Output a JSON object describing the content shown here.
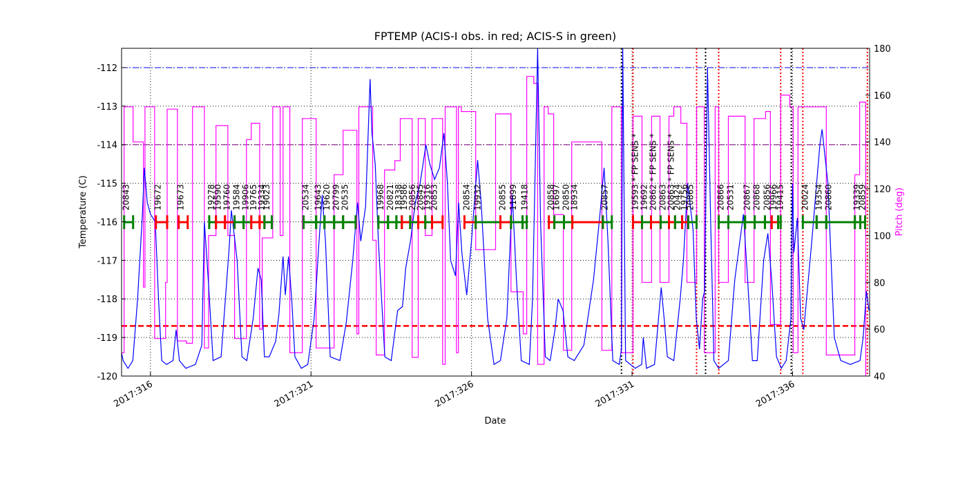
{
  "chart_data": {
    "type": "line",
    "title": "FPTEMP (ACIS-I obs. in red; ACIS-S in green)",
    "x_label": "Date",
    "y_label": "Temperature (C)",
    "y2_label": "Pitch (deg)",
    "y2_color": "#ff00ff",
    "xlim": [
      315.1,
      338.4
    ],
    "ylim": [
      -120,
      -111.5
    ],
    "y2lim": [
      40,
      180
    ],
    "xticks": [
      {
        "value": 316,
        "label": "2017:316"
      },
      {
        "value": 321,
        "label": "2017:321"
      },
      {
        "value": 326,
        "label": "2017:326"
      },
      {
        "value": 331,
        "label": "2017:331"
      },
      {
        "value": 336,
        "label": "2017:336"
      }
    ],
    "yticks": [
      -120,
      -119,
      -118,
      -117,
      -116,
      -115,
      -114,
      -113,
      -112
    ],
    "y2ticks": [
      40,
      60,
      80,
      100,
      120,
      140,
      160,
      180
    ],
    "grid": true,
    "series": [
      {
        "color": "#0000ff",
        "axis": "y",
        "x": [
          315.1,
          315.15,
          315.3,
          315.45,
          315.6,
          315.75,
          315.81,
          315.9,
          316.0,
          316.15,
          316.25,
          316.35,
          316.5,
          316.7,
          316.8,
          316.9,
          317.1,
          317.4,
          317.6,
          317.68,
          317.8,
          317.95,
          318.2,
          318.45,
          318.52,
          318.7,
          318.85,
          319.0,
          319.2,
          319.35,
          319.45,
          319.55,
          319.7,
          319.9,
          320.0,
          320.13,
          320.2,
          320.3,
          320.4,
          320.5,
          320.7,
          320.9,
          321.1,
          321.25,
          321.35,
          321.45,
          321.6,
          321.9,
          322.1,
          322.3,
          322.45,
          322.55,
          322.7,
          322.84,
          322.9,
          323.0,
          323.1,
          323.3,
          323.5,
          323.7,
          323.85,
          323.95,
          324.1,
          324.25,
          324.4,
          324.58,
          324.7,
          324.85,
          325.0,
          325.14,
          325.25,
          325.35,
          325.5,
          325.6,
          325.7,
          325.85,
          326.0,
          326.19,
          326.3,
          326.5,
          326.7,
          326.9,
          327.1,
          327.27,
          327.4,
          327.55,
          327.8,
          327.9,
          328.06,
          328.15,
          328.3,
          328.45,
          328.6,
          328.7,
          328.85,
          329.0,
          329.2,
          329.5,
          329.8,
          330.0,
          330.13,
          330.25,
          330.4,
          330.6,
          330.67,
          330.71,
          330.8,
          331.1,
          331.3,
          331.35,
          331.45,
          331.7,
          331.91,
          332.0,
          332.1,
          332.3,
          332.5,
          332.6,
          332.73,
          332.9,
          333.0,
          333.1,
          333.2,
          333.26,
          333.35,
          333.45,
          333.55,
          333.7,
          334.0,
          334.2,
          334.47,
          334.6,
          334.75,
          334.9,
          335.1,
          335.23,
          335.35,
          335.5,
          335.65,
          335.8,
          335.95,
          336.0,
          336.04,
          336.15,
          336.25,
          336.35,
          336.6,
          336.85,
          336.92,
          337.1,
          337.3,
          337.5,
          337.8,
          338.1,
          338.2,
          338.3,
          338.38
        ],
        "values": [
          -119.4,
          -119.6,
          -119.8,
          -119.6,
          -118,
          -115.8,
          -114.6,
          -115.5,
          -115.8,
          -116,
          -118,
          -119.6,
          -119.7,
          -119.6,
          -118.8,
          -119.6,
          -119.8,
          -119.7,
          -119.2,
          -116,
          -117.5,
          -119.6,
          -119.5,
          -116.7,
          -115.7,
          -117,
          -119.5,
          -119.6,
          -118.5,
          -117.2,
          -117.5,
          -119.5,
          -119.5,
          -119.1,
          -118.4,
          -116.9,
          -117.9,
          -116.9,
          -118,
          -119.5,
          -119.8,
          -119.7,
          -118.5,
          -116.5,
          -115.3,
          -116.5,
          -119.5,
          -119.6,
          -118.6,
          -117,
          -115.5,
          -116.5,
          -115.6,
          -112.3,
          -113.7,
          -114.5,
          -116.5,
          -119.5,
          -119.6,
          -118.3,
          -118.2,
          -117.2,
          -116.5,
          -115.5,
          -115,
          -114,
          -114.5,
          -114.9,
          -114.6,
          -113.7,
          -115,
          -117,
          -117.4,
          -115.5,
          -116.8,
          -117.9,
          -116.5,
          -114.4,
          -115.5,
          -118.5,
          -119.7,
          -119.6,
          -118.5,
          -115.3,
          -117.5,
          -119.6,
          -119.7,
          -118,
          -111.5,
          -116,
          -119.5,
          -119.6,
          -118.8,
          -118,
          -118.3,
          -119.5,
          -119.6,
          -119.2,
          -117.5,
          -115.8,
          -114.6,
          -116.5,
          -119.6,
          -119.7,
          -119.3,
          -111.5,
          -119.6,
          -119.8,
          -119.7,
          -119,
          -119.8,
          -119.7,
          -117.7,
          -118.5,
          -119.5,
          -119.6,
          -118,
          -117,
          -115,
          -116.2,
          -118.5,
          -119.3,
          -118,
          -117.8,
          -112,
          -116,
          -119.6,
          -119.8,
          -119.6,
          -117.5,
          -115.8,
          -117.5,
          -119.6,
          -119.6,
          -117,
          -116.3,
          -117.5,
          -119.5,
          -119.8,
          -119.6,
          -118.5,
          -115,
          -116.8,
          -115.9,
          -118.5,
          -118.8,
          -116.5,
          -114,
          -113.6,
          -115,
          -119,
          -119.6,
          -119.7,
          -119.6,
          -119,
          -117.8,
          -118.3
        ]
      },
      {
        "color": "#ff00ff",
        "axis": "y2",
        "x": [
          315.1,
          315.18,
          315.18,
          315.46,
          315.46,
          315.78,
          315.78,
          315.83,
          315.83,
          316.13,
          316.13,
          316.47,
          316.47,
          316.52,
          316.52,
          316.84,
          316.84,
          317.12,
          317.12,
          317.31,
          317.31,
          317.68,
          317.68,
          317.81,
          317.81,
          318.04,
          318.04,
          318.41,
          318.41,
          318.62,
          318.62,
          318.99,
          318.99,
          319.14,
          319.14,
          319.4,
          319.4,
          319.48,
          319.48,
          319.81,
          319.81,
          320.04,
          320.04,
          320.13,
          320.13,
          320.34,
          320.34,
          320.73,
          320.73,
          321.16,
          321.16,
          321.72,
          321.72,
          322.0,
          322.0,
          322.43,
          322.43,
          322.49,
          322.49,
          322.92,
          322.92,
          323.03,
          323.03,
          323.29,
          323.29,
          323.61,
          323.61,
          323.78,
          323.78,
          324.15,
          324.15,
          324.34,
          324.34,
          324.56,
          324.56,
          324.77,
          324.77,
          325.1,
          325.1,
          325.18,
          325.18,
          325.53,
          325.53,
          325.59,
          325.59,
          325.68,
          325.68,
          326.13,
          326.13,
          326.75,
          326.75,
          327.23,
          327.23,
          327.61,
          327.61,
          327.72,
          327.72,
          327.94,
          327.94,
          328.06,
          328.06,
          328.26,
          328.26,
          328.39,
          328.39,
          328.56,
          328.56,
          328.86,
          328.86,
          329.12,
          329.12,
          330.06,
          330.06,
          330.37,
          330.37,
          330.67,
          330.67,
          331.03,
          331.03,
          331.31,
          331.31,
          331.61,
          331.61,
          331.87,
          331.87,
          332.15,
          332.15,
          332.3,
          332.3,
          332.52,
          332.52,
          332.71,
          332.71,
          333.01,
          333.01,
          333.25,
          333.25,
          333.59,
          333.59,
          333.7,
          333.7,
          334.0,
          334.0,
          334.52,
          334.52,
          334.8,
          334.8,
          335.16,
          335.16,
          335.31,
          335.31,
          335.63,
          335.63,
          335.91,
          335.91,
          336.02,
          336.02,
          336.17,
          336.17,
          337.05,
          337.05,
          337.94,
          337.94,
          338.09,
          338.09,
          338.28,
          338.28
        ],
        "values": [
          50,
          50,
          155,
          155,
          140,
          140,
          78,
          78,
          155,
          155,
          56,
          56,
          80,
          80,
          154,
          154,
          55,
          55,
          54,
          54,
          155,
          155,
          52,
          52,
          100,
          100,
          147,
          147,
          100,
          100,
          56,
          56,
          141,
          141,
          148,
          148,
          60,
          60,
          99,
          99,
          155,
          155,
          100,
          100,
          155,
          155,
          50,
          50,
          150,
          150,
          52,
          52,
          126,
          126,
          145,
          145,
          58,
          58,
          155,
          155,
          98,
          98,
          49,
          49,
          128,
          128,
          132,
          132,
          150,
          150,
          48,
          48,
          150,
          150,
          100,
          100,
          150,
          150,
          45,
          45,
          155,
          155,
          50,
          50,
          155,
          155,
          153,
          153,
          94,
          94,
          152,
          152,
          76,
          76,
          58,
          58,
          168,
          168,
          165,
          165,
          45,
          45,
          155,
          155,
          152,
          152,
          109,
          109,
          51,
          51,
          140,
          140,
          51,
          51,
          155,
          155,
          50,
          50,
          151,
          151,
          80,
          80,
          151,
          151,
          80,
          80,
          151,
          151,
          155,
          155,
          148,
          148,
          80,
          80,
          155,
          155,
          50,
          50,
          155,
          155,
          80,
          80,
          151,
          151,
          80,
          80,
          150,
          150,
          153,
          153,
          62,
          62,
          160,
          160,
          155,
          155,
          50,
          50,
          155,
          155,
          49,
          49,
          126,
          126,
          157,
          157,
          40
        ]
      }
    ],
    "hlines": [
      {
        "value": -112,
        "color": "#0000ff",
        "style": "dash-dot"
      },
      {
        "value": -114,
        "color": "#800080",
        "style": "dash-dot"
      },
      {
        "value": -118.7,
        "color": "#ff0000",
        "style": "dashed"
      }
    ],
    "vlines": [
      {
        "value": 330.67,
        "color": "#000000"
      },
      {
        "value": 333.29,
        "color": "#000000"
      },
      {
        "value": 335.96,
        "color": "#000000"
      },
      {
        "value": 331.03,
        "color": "#ff0000"
      },
      {
        "value": 333.01,
        "color": "#ff0000"
      },
      {
        "value": 333.7,
        "color": "#ff0000"
      },
      {
        "value": 335.63,
        "color": "#ff0000"
      },
      {
        "value": 336.32,
        "color": "#ff0000"
      },
      {
        "value": 338.33,
        "color": "#ff0000"
      }
    ],
    "observations": [
      {
        "obsid": "20843",
        "color": "#008000",
        "start": 315.18,
        "stop": 315.46
      },
      {
        "obsid": "19672",
        "color": "#ff0000",
        "start": 316.17,
        "stop": 316.52
      },
      {
        "obsid": "19673",
        "color": "#ff0000",
        "start": 316.88,
        "stop": 317.16
      },
      {
        "obsid": "19278",
        "color": "#008000",
        "start": 317.83,
        "stop": 318.04
      },
      {
        "obsid": "19590",
        "color": "#ff0000",
        "start": 318.04,
        "stop": 318.32
      },
      {
        "obsid": "19760",
        "color": "#ff0000",
        "start": 318.32,
        "stop": 318.62
      },
      {
        "obsid": "19584",
        "color": "#008000",
        "start": 318.62,
        "stop": 318.9
      },
      {
        "obsid": "19906",
        "color": "#008000",
        "start": 318.9,
        "stop": 319.14
      },
      {
        "obsid": "19765",
        "color": "#ff0000",
        "start": 319.14,
        "stop": 319.4
      },
      {
        "obsid": "19334",
        "color": "#ff0000",
        "start": 319.4,
        "stop": 319.55
      },
      {
        "obsid": "19023",
        "color": "#008000",
        "start": 319.55,
        "stop": 319.78
      },
      {
        "obsid": "20534",
        "color": "#008000",
        "start": 320.77,
        "stop": 321.16
      },
      {
        "obsid": "19643",
        "color": "#008000",
        "start": 321.16,
        "stop": 321.42
      },
      {
        "obsid": "19620",
        "color": "#008000",
        "start": 321.42,
        "stop": 321.72
      },
      {
        "obsid": "20799",
        "color": "#008000",
        "start": 321.72,
        "stop": 322.0
      },
      {
        "obsid": "20535",
        "color": "#008000",
        "start": 322.0,
        "stop": 322.39
      },
      {
        "obsid": "19968",
        "color": "#008000",
        "start": 323.1,
        "stop": 323.4
      },
      {
        "obsid": "20821",
        "color": "#008000",
        "start": 323.4,
        "stop": 323.66
      },
      {
        "obsid": "18338",
        "color": "#008000",
        "start": 323.66,
        "stop": 323.83
      },
      {
        "obsid": "19586",
        "color": "#ff0000",
        "start": 323.83,
        "stop": 324.09
      },
      {
        "obsid": "20856",
        "color": "#008000",
        "start": 324.09,
        "stop": 324.34
      },
      {
        "obsid": "20845",
        "color": "#ff0000",
        "start": 324.34,
        "stop": 324.56
      },
      {
        "obsid": "19316",
        "color": "#008000",
        "start": 324.56,
        "stop": 324.77
      },
      {
        "obsid": "20853",
        "color": "#ff0000",
        "start": 324.77,
        "stop": 325.1
      },
      {
        "obsid": "20854",
        "color": "#ff0000",
        "start": 325.78,
        "stop": 326.13
      },
      {
        "obsid": "19932",
        "color": "#008000",
        "start": 326.13,
        "stop": 326.9
      },
      {
        "obsid": "20855",
        "color": "#ff0000",
        "start": 326.9,
        "stop": 327.23
      },
      {
        "obsid": "11899",
        "color": "#008000",
        "start": 327.23,
        "stop": 327.59
      },
      {
        "obsid": "19418",
        "color": "#008000",
        "start": 327.59,
        "stop": 327.72
      },
      {
        "obsid": "20858",
        "color": "#ff0000",
        "start": 328.41,
        "stop": 328.58
      },
      {
        "obsid": "16697",
        "color": "#008000",
        "start": 328.58,
        "stop": 328.88
      },
      {
        "obsid": "20850",
        "color": "#008000",
        "start": 328.88,
        "stop": 329.14
      },
      {
        "obsid": "18934",
        "color": "#ff0000",
        "start": 329.14,
        "stop": 330.09
      },
      {
        "obsid": "20857",
        "color": "#008000",
        "start": 330.09,
        "stop": 330.37
      },
      {
        "obsid": "19593 * FP SENS *",
        "color": "#ff0000",
        "start": 331.03,
        "stop": 331.31
      },
      {
        "obsid": "19692",
        "color": "#008000",
        "start": 331.31,
        "stop": 331.59
      },
      {
        "obsid": "20862 * FP SENS *",
        "color": "#ff0000",
        "start": 331.59,
        "stop": 331.89
      },
      {
        "obsid": "20863",
        "color": "#008000",
        "start": 331.89,
        "stop": 332.15
      },
      {
        "obsid": "20863 * FP SENS *",
        "color": "#ff0000",
        "start": 332.15,
        "stop": 332.34
      },
      {
        "obsid": "20424",
        "color": "#008000",
        "start": 332.34,
        "stop": 332.56
      },
      {
        "obsid": "19756",
        "color": "#ff0000",
        "start": 332.56,
        "stop": 332.75
      },
      {
        "obsid": "20865",
        "color": "#008000",
        "start": 332.75,
        "stop": 333.01
      },
      {
        "obsid": "20866",
        "color": "#008000",
        "start": 333.7,
        "stop": 334.0
      },
      {
        "obsid": "20531",
        "color": "#008000",
        "start": 334.0,
        "stop": 334.52
      },
      {
        "obsid": "20867",
        "color": "#008000",
        "start": 334.52,
        "stop": 334.82
      },
      {
        "obsid": "20868",
        "color": "#008000",
        "start": 334.82,
        "stop": 335.14
      },
      {
        "obsid": "20856",
        "color": "#008000",
        "start": 335.14,
        "stop": 335.35
      },
      {
        "obsid": "19966",
        "color": "#ff0000",
        "start": 335.35,
        "stop": 335.55
      },
      {
        "obsid": "19415",
        "color": "#008000",
        "start": 335.55,
        "stop": 335.63
      },
      {
        "obsid": "20024",
        "color": "#008000",
        "start": 336.32,
        "stop": 336.75
      },
      {
        "obsid": "19354",
        "color": "#008000",
        "start": 336.75,
        "stop": 337.05
      },
      {
        "obsid": "20860",
        "color": "#008000",
        "start": 337.05,
        "stop": 337.94
      },
      {
        "obsid": "19339",
        "color": "#008000",
        "start": 337.94,
        "stop": 338.11
      },
      {
        "obsid": "20859",
        "color": "#008000",
        "start": 338.11,
        "stop": 338.26
      }
    ]
  }
}
